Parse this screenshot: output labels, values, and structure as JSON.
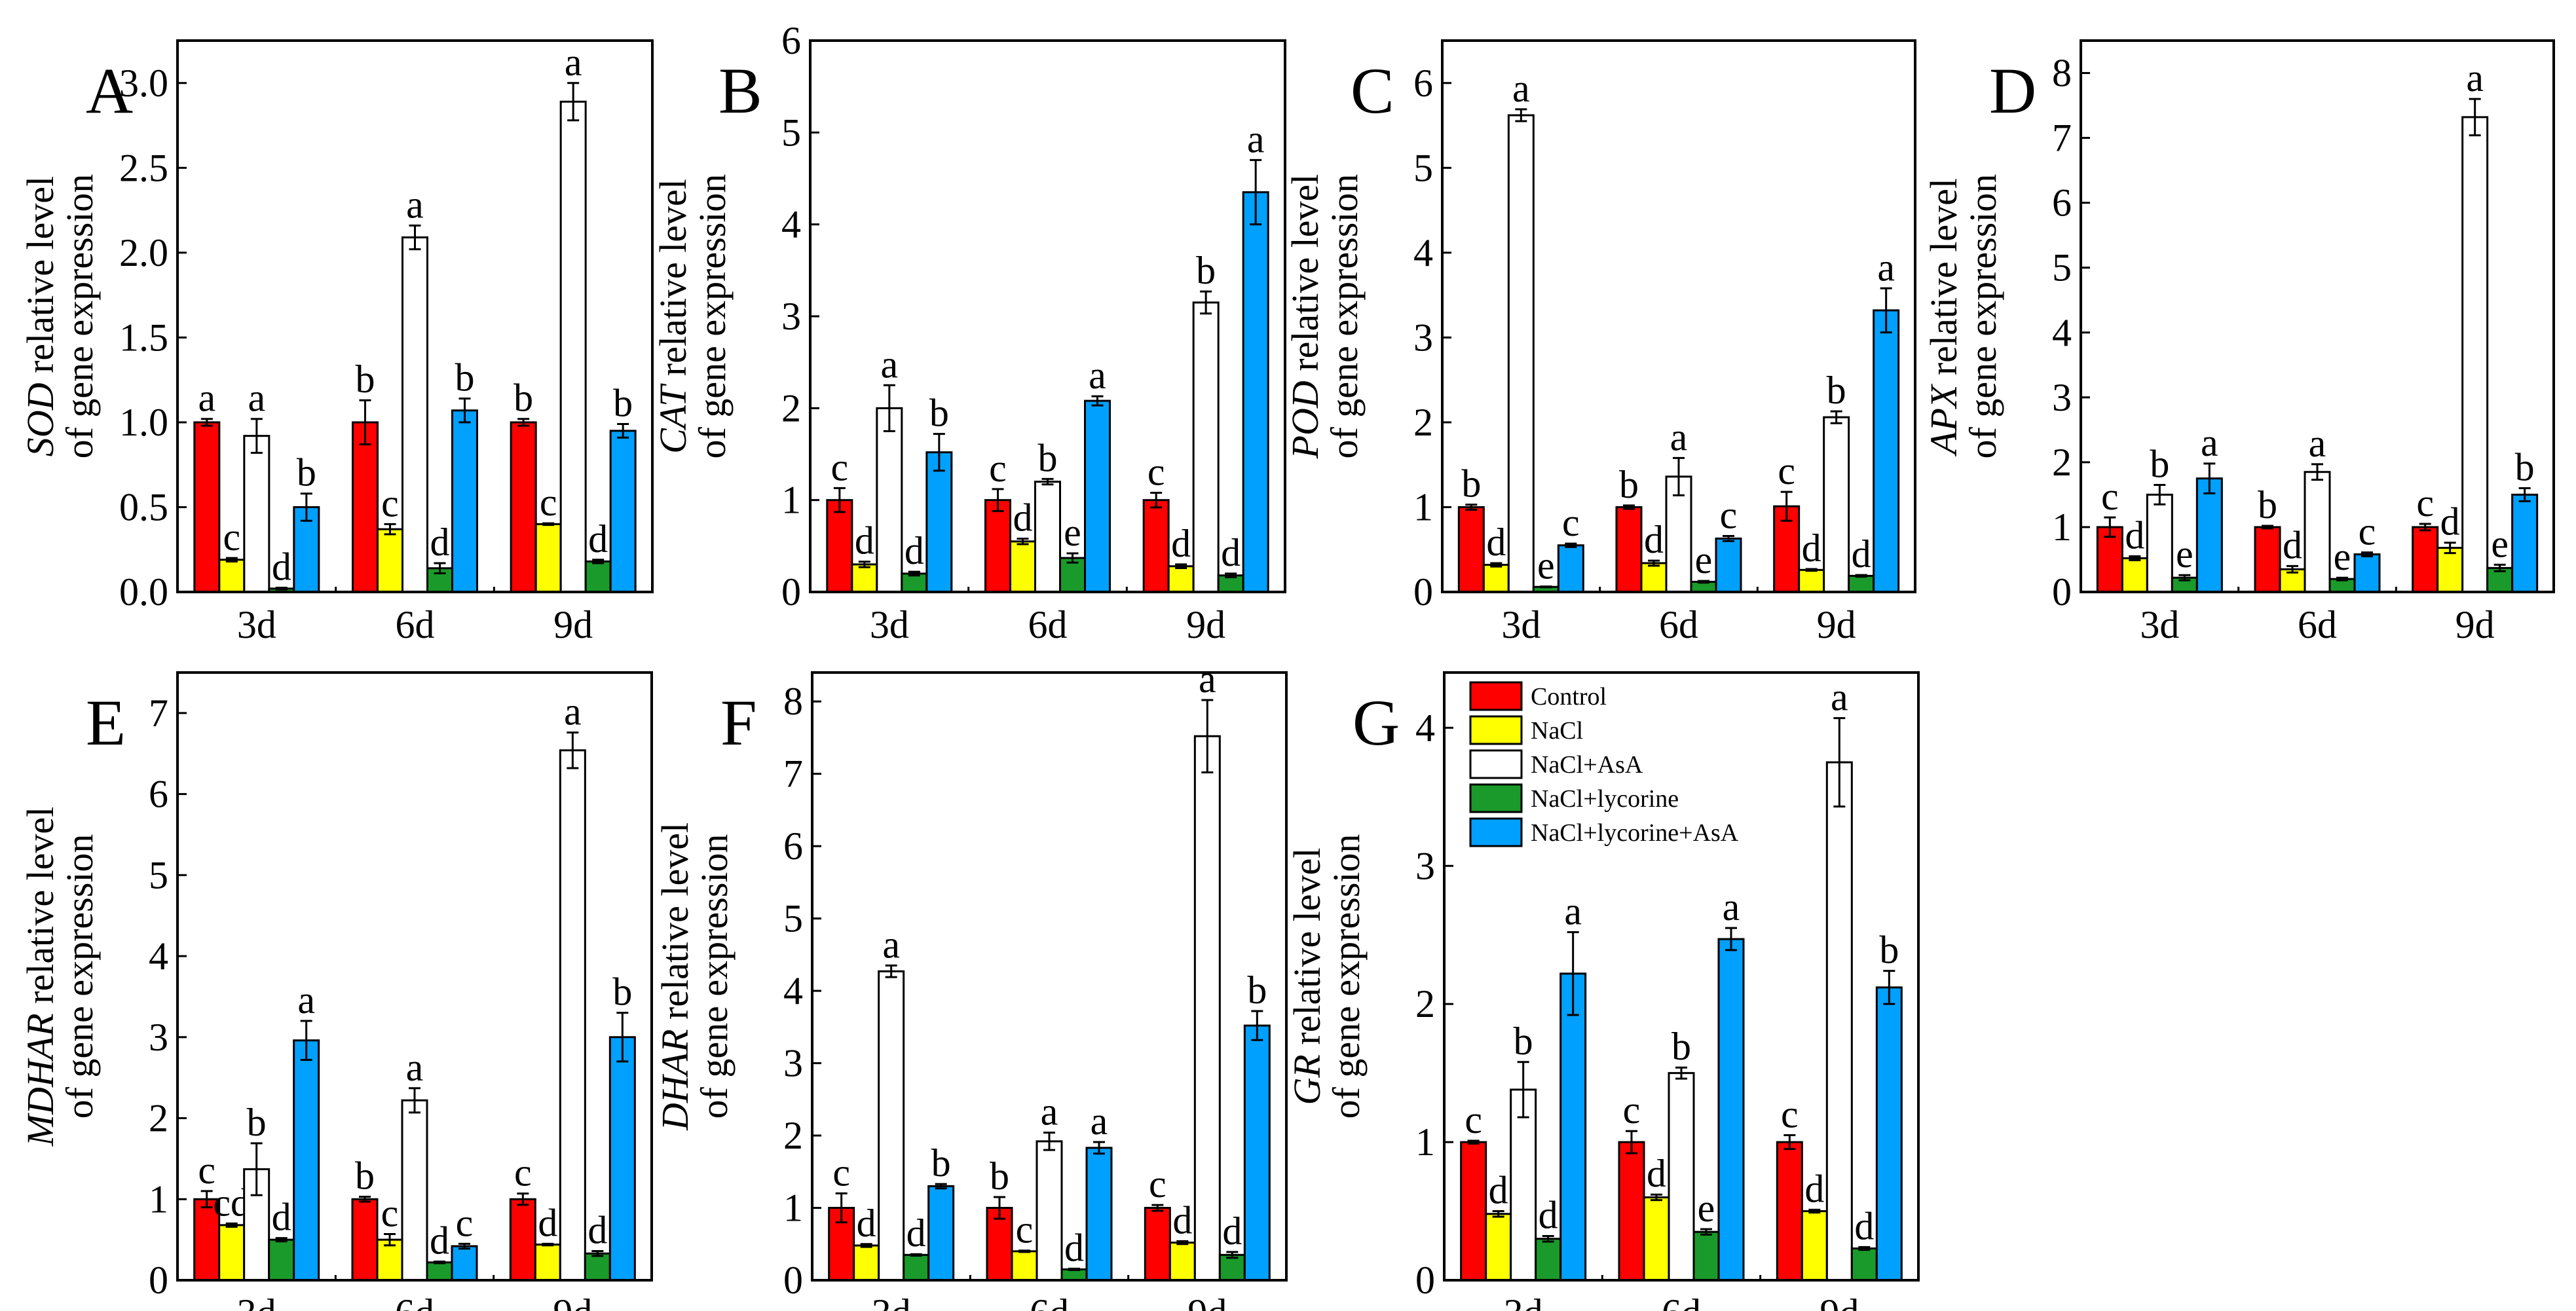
{
  "chart_data": {
    "type": "bar",
    "legend": {
      "placement": "top-left of panel G",
      "series_names": [
        "Control",
        "NaCl",
        "NaCl+AsA",
        "NaCl+lycorine",
        "NaCl+lycorine+AsA"
      ],
      "colors": [
        "#ff0000",
        "#ffff00",
        "#ffffff",
        "#1a9a2a",
        "#00a0ff"
      ]
    },
    "categories": [
      "3d",
      "6d",
      "9d"
    ],
    "panels": [
      {
        "letter": "A",
        "gene": "SOD",
        "ylabel_rest": " relative level",
        "ylabel_line2": "of gene expression",
        "ylim": [
          0,
          3.25
        ],
        "yticks": [
          "0.0",
          "0.5",
          "1.0",
          "1.5",
          "2.0",
          "2.5",
          "3.0"
        ],
        "ytick_values": [
          0,
          0.5,
          1,
          1.5,
          2,
          2.5,
          3
        ],
        "values": [
          [
            1.0,
            0.19,
            0.92,
            0.02,
            0.5
          ],
          [
            1.0,
            0.37,
            2.09,
            0.14,
            1.07
          ],
          [
            1.0,
            0.4,
            2.89,
            0.18,
            0.95
          ]
        ],
        "errors": [
          [
            0.02,
            0.01,
            0.1,
            0.005,
            0.08
          ],
          [
            0.13,
            0.03,
            0.07,
            0.03,
            0.07
          ],
          [
            0.02,
            0.005,
            0.11,
            0.01,
            0.04
          ]
        ],
        "letters": [
          [
            "a",
            "c",
            "a",
            "d",
            "b"
          ],
          [
            "b",
            "c",
            "a",
            "d",
            "b"
          ],
          [
            "b",
            "c",
            "a",
            "d",
            "b"
          ]
        ]
      },
      {
        "letter": "B",
        "gene": "CAT",
        "ylabel_rest": " relative level",
        "ylabel_line2": "of gene expression",
        "ylim": [
          0,
          6
        ],
        "yticks": [
          "0",
          "1",
          "2",
          "3",
          "4",
          "5",
          "6"
        ],
        "ytick_values": [
          0,
          1,
          2,
          3,
          4,
          5,
          6
        ],
        "values": [
          [
            1.0,
            0.3,
            2.0,
            0.2,
            1.52
          ],
          [
            1.0,
            0.55,
            1.2,
            0.37,
            2.08
          ],
          [
            1.0,
            0.28,
            3.15,
            0.18,
            4.35
          ]
        ],
        "errors": [
          [
            0.13,
            0.03,
            0.25,
            0.02,
            0.2
          ],
          [
            0.12,
            0.03,
            0.03,
            0.05,
            0.05
          ],
          [
            0.08,
            0.02,
            0.12,
            0.02,
            0.35
          ]
        ],
        "letters": [
          [
            "c",
            "d",
            "a",
            "d",
            "b"
          ],
          [
            "c",
            "d",
            "b",
            "e",
            "a"
          ],
          [
            "c",
            "d",
            "b",
            "d",
            "a"
          ]
        ]
      },
      {
        "letter": "C",
        "gene": "POD",
        "ylabel_rest": " relative level",
        "ylabel_line2": "of gene expression",
        "ylim": [
          0,
          6.5
        ],
        "yticks": [
          "0",
          "1",
          "2",
          "3",
          "4",
          "5",
          "6"
        ],
        "ytick_values": [
          0,
          1,
          2,
          3,
          4,
          5,
          6
        ],
        "values": [
          [
            1.0,
            0.32,
            5.62,
            0.06,
            0.55
          ],
          [
            1.0,
            0.34,
            1.36,
            0.12,
            0.63
          ],
          [
            1.01,
            0.26,
            2.06,
            0.19,
            3.32
          ]
        ],
        "errors": [
          [
            0.03,
            0.02,
            0.07,
            0.005,
            0.02
          ],
          [
            0.02,
            0.03,
            0.22,
            0.01,
            0.03
          ],
          [
            0.17,
            0.01,
            0.07,
            0.01,
            0.26
          ]
        ],
        "letters": [
          [
            "b",
            "d",
            "a",
            "e",
            "c"
          ],
          [
            "b",
            "d",
            "a",
            "e",
            "c"
          ],
          [
            "c",
            "d",
            "b",
            "d",
            "a"
          ]
        ]
      },
      {
        "letter": "D",
        "gene": "APX",
        "ylabel_rest": " relative level",
        "ylabel_line2": "of gene expression",
        "ylim": [
          0,
          8.5
        ],
        "yticks": [
          "0",
          "1",
          "2",
          "3",
          "4",
          "5",
          "6",
          "7",
          "8"
        ],
        "ytick_values": [
          0,
          1,
          2,
          3,
          4,
          5,
          6,
          7,
          8
        ],
        "values": [
          [
            1.0,
            0.52,
            1.5,
            0.22,
            1.75
          ],
          [
            1.0,
            0.35,
            1.85,
            0.2,
            0.58
          ],
          [
            1.0,
            0.68,
            7.32,
            0.37,
            1.5
          ]
        ],
        "errors": [
          [
            0.15,
            0.03,
            0.15,
            0.04,
            0.23
          ],
          [
            0.02,
            0.05,
            0.12,
            0.02,
            0.03
          ],
          [
            0.05,
            0.08,
            0.28,
            0.05,
            0.1
          ]
        ],
        "letters": [
          [
            "c",
            "d",
            "b",
            "e",
            "a"
          ],
          [
            "b",
            "d",
            "a",
            "e",
            "c"
          ],
          [
            "c",
            "d",
            "a",
            "e",
            "b"
          ]
        ]
      },
      {
        "letter": "E",
        "gene": "MDHAR",
        "ylabel_rest": " relative level",
        "ylabel_line2": "of gene expression",
        "ylim": [
          0,
          7.5
        ],
        "yticks": [
          "0",
          "1",
          "2",
          "3",
          "4",
          "5",
          "6",
          "7"
        ],
        "ytick_values": [
          0,
          1,
          2,
          3,
          4,
          5,
          6,
          7
        ],
        "values": [
          [
            1.0,
            0.68,
            1.37,
            0.5,
            2.96
          ],
          [
            1.0,
            0.5,
            2.22,
            0.22,
            0.42
          ],
          [
            1.0,
            0.44,
            6.54,
            0.33,
            3.0
          ]
        ],
        "errors": [
          [
            0.1,
            0.02,
            0.32,
            0.02,
            0.24
          ],
          [
            0.03,
            0.07,
            0.15,
            0.01,
            0.03
          ],
          [
            0.07,
            0.01,
            0.22,
            0.03,
            0.3
          ]
        ],
        "letters": [
          [
            "c",
            "cd",
            "b",
            "d",
            "a"
          ],
          [
            "b",
            "c",
            "a",
            "d",
            "c"
          ],
          [
            "c",
            "d",
            "a",
            "d",
            "b"
          ]
        ]
      },
      {
        "letter": "F",
        "gene": "DHAR",
        "ylabel_rest": " relative level",
        "ylabel_line2": "of gene expression",
        "ylim": [
          0,
          8.4
        ],
        "yticks": [
          "0",
          "1",
          "2",
          "3",
          "4",
          "5",
          "6",
          "7",
          "8"
        ],
        "ytick_values": [
          0,
          1,
          2,
          3,
          4,
          5,
          6,
          7,
          8
        ],
        "values": [
          [
            1.0,
            0.48,
            4.27,
            0.35,
            1.3
          ],
          [
            1.0,
            0.4,
            1.92,
            0.15,
            1.83
          ],
          [
            1.0,
            0.52,
            7.52,
            0.35,
            3.52
          ]
        ],
        "errors": [
          [
            0.2,
            0.02,
            0.08,
            0.01,
            0.03
          ],
          [
            0.15,
            0.01,
            0.12,
            0.01,
            0.08
          ],
          [
            0.04,
            0.02,
            0.5,
            0.04,
            0.2
          ]
        ],
        "letters": [
          [
            "c",
            "d",
            "a",
            "d",
            "b"
          ],
          [
            "b",
            "c",
            "a",
            "d",
            "a"
          ],
          [
            "c",
            "d",
            "a",
            "d",
            "b"
          ]
        ]
      },
      {
        "letter": "G",
        "gene": "GR",
        "ylabel_rest": " relative level",
        "ylabel_line2": "of gene expression",
        "ylim": [
          0,
          4.4
        ],
        "yticks": [
          "0",
          "1",
          "2",
          "3",
          "4"
        ],
        "ytick_values": [
          0,
          1,
          2,
          3,
          4
        ],
        "values": [
          [
            1.0,
            0.48,
            1.38,
            0.3,
            2.22
          ],
          [
            1.0,
            0.6,
            1.5,
            0.35,
            2.47
          ],
          [
            1.0,
            0.5,
            3.75,
            0.23,
            2.12
          ]
        ],
        "errors": [
          [
            0.01,
            0.02,
            0.2,
            0.02,
            0.3
          ],
          [
            0.08,
            0.02,
            0.04,
            0.02,
            0.08
          ],
          [
            0.05,
            0.01,
            0.32,
            0.01,
            0.12
          ]
        ],
        "letters": [
          [
            "c",
            "d",
            "b",
            "d",
            "a"
          ],
          [
            "c",
            "d",
            "b",
            "e",
            "a"
          ],
          [
            "c",
            "d",
            "a",
            "d",
            "b"
          ]
        ]
      }
    ]
  }
}
